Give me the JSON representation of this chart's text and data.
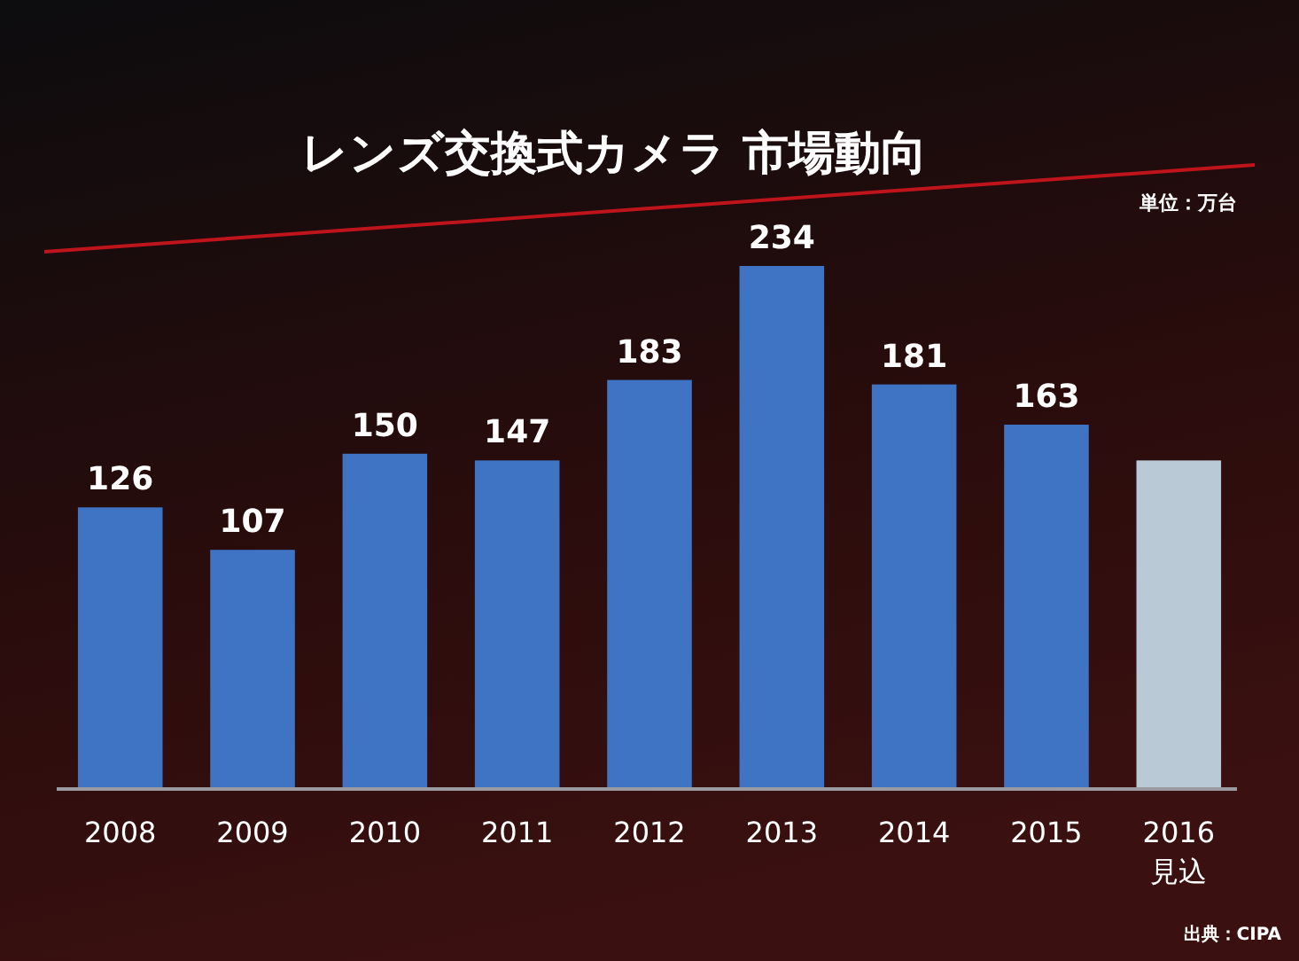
{
  "chart_data": {
    "type": "bar",
    "title": "レンズ交換式カメラ 市場動向",
    "categories": [
      "2008",
      "2009",
      "2010",
      "2011",
      "2012",
      "2013",
      "2014",
      "2015",
      "2016\n見込"
    ],
    "values": [
      126,
      107,
      150,
      147,
      183,
      234,
      181,
      163,
      147
    ],
    "value_labels": [
      "126",
      "107",
      "150",
      "147",
      "183",
      "234",
      "181",
      "163",
      null
    ],
    "colors": [
      "#3f74c4",
      "#3f74c4",
      "#3f74c4",
      "#3f74c4",
      "#3f74c4",
      "#3f74c4",
      "#3f74c4",
      "#3f74c4",
      "#b9c9d6"
    ],
    "relative": false,
    "annotations": [
      "単位：万台",
      "出典：CIPA"
    ]
  }
}
